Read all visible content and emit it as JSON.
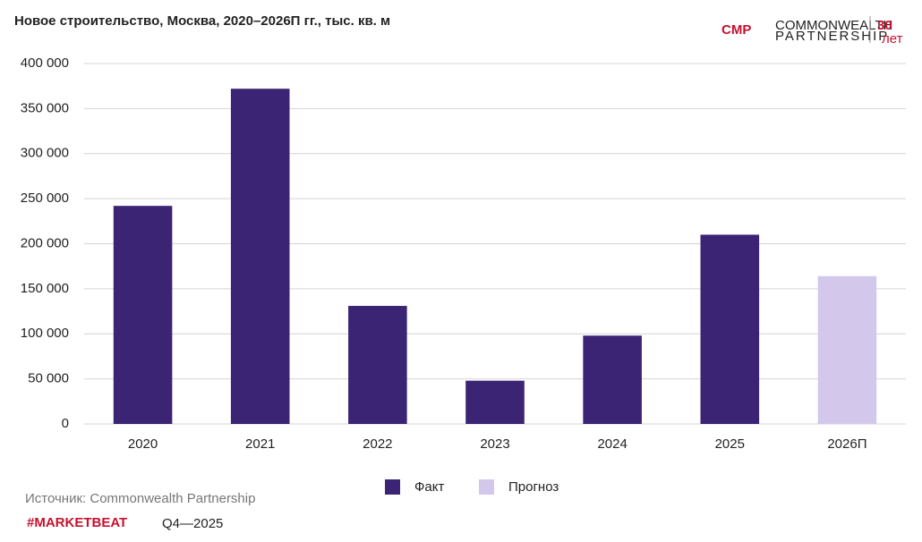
{
  "chart_data": {
    "type": "bar",
    "title": "Новое строительство, Москва, 2020–2026П гг., тыс. кв. м",
    "categories": [
      "2020",
      "2021",
      "2022",
      "2023",
      "2024",
      "2025",
      "2026П"
    ],
    "series": [
      {
        "name": "Факт",
        "color": "#3b2473",
        "values": [
          242000,
          372000,
          131000,
          48000,
          98000,
          210000,
          null
        ]
      },
      {
        "name": "Прогноз",
        "color": "#d3c8ec",
        "values": [
          null,
          null,
          null,
          null,
          null,
          null,
          164000
        ]
      }
    ],
    "ylim": [
      0,
      400000
    ],
    "yticks": [
      0,
      {
        "value": 50000,
        "label": "50 000"
      },
      {
        "value": 100000,
        "label": "100 000"
      },
      {
        "value": 150000,
        "label": "150 000"
      },
      {
        "value": 200000,
        "label": "200 000"
      },
      {
        "value": 250000,
        "label": "250 000"
      },
      {
        "value": 300000,
        "label": "300 000"
      },
      {
        "value": 350000,
        "label": "350 000"
      },
      {
        "value": 400000,
        "label": "400 000"
      }
    ],
    "grid": true,
    "legend": "bottom"
  },
  "logo": {
    "mark": "CMP",
    "name_line1": "COMMONWEALTH",
    "name_line2": "PARTNERSHIP",
    "years": "30",
    "years_label": "лет"
  },
  "footer": {
    "source": "Источник: Commonwealth Partnership",
    "brand": "#MARKETBEAT",
    "period": "Q4—2025"
  }
}
